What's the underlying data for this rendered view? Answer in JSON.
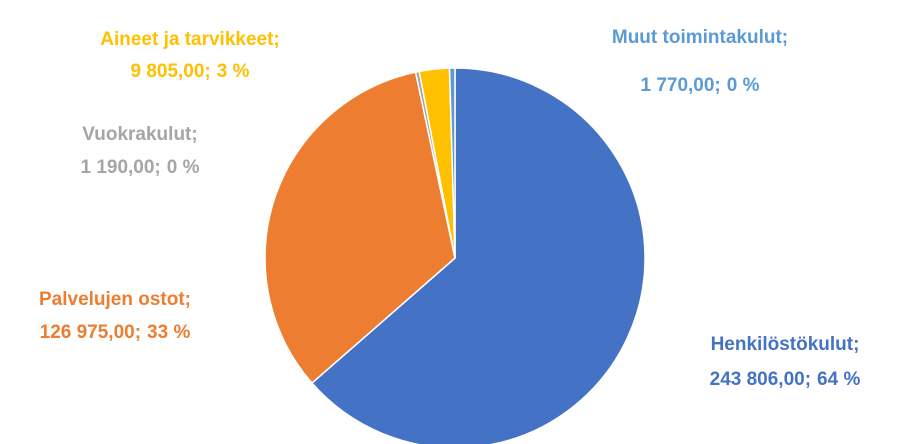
{
  "chart_data": {
    "type": "pie",
    "categories": [
      "Henkilöstökulut;",
      "Palvelujen ostot;",
      "Vuokrakulut;",
      "Aineet ja tarvikkeet;",
      "Muut toimintakulut;"
    ],
    "values": [
      243806,
      126975,
      1190,
      9805,
      1770
    ],
    "value_labels": [
      "243 806,00;",
      "126 975,00;",
      "1 190,00;",
      "9 805,00;",
      "1 770,00;"
    ],
    "percentages": [
      64,
      33,
      0,
      3,
      0
    ],
    "percentage_labels": [
      "64 %",
      "33 %",
      "0 %",
      "3 %",
      "0 %"
    ],
    "colors": [
      "#4472c4",
      "#ed7d31",
      "#a5a5a5",
      "#ffc000",
      "#5b9bd5"
    ]
  }
}
